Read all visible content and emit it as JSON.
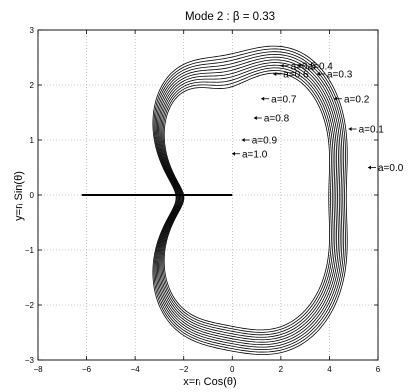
{
  "chart_data": {
    "type": "line",
    "title": "Mode 2 : β = 0.33",
    "xlabel": "x=rᵢ Cos(θ)",
    "ylabel": "y=rᵢ Sin(θ)",
    "xlim": [
      -8,
      6
    ],
    "ylim": [
      -3,
      3
    ],
    "xticks": [
      "−8",
      "−6",
      "−4",
      "−2",
      "0",
      "2",
      "4",
      "6"
    ],
    "yticks": [
      "−3",
      "−2",
      "−1",
      "0",
      "1",
      "2",
      "3"
    ],
    "grid": "dotted",
    "curve_params": {
      "beta": 0.33,
      "mode": 2
    },
    "series": [
      {
        "name": "a=0.0",
        "a": 0.0,
        "label_x": 6.0,
        "label_y": 0.5
      },
      {
        "name": "a=0.1",
        "a": 0.1,
        "label_x": 5.2,
        "label_y": 1.2
      },
      {
        "name": "a=0.2",
        "a": 0.2,
        "label_x": 4.6,
        "label_y": 1.75
      },
      {
        "name": "a=0.3",
        "a": 0.3,
        "label_x": 3.9,
        "label_y": 2.2
      },
      {
        "name": "a=0.4",
        "a": 0.4,
        "label_x": 3.1,
        "label_y": 2.35
      },
      {
        "name": "a=0.5",
        "a": 0.5,
        "label_x": 2.4,
        "label_y": 2.35
      },
      {
        "name": "a=0.6",
        "a": 0.6,
        "label_x": 2.1,
        "label_y": 2.2
      },
      {
        "name": "a=0.7",
        "a": 0.7,
        "label_x": 1.6,
        "label_y": 1.75
      },
      {
        "name": "a=0.8",
        "a": 0.8,
        "label_x": 1.3,
        "label_y": 1.4
      },
      {
        "name": "a=0.9",
        "a": 0.9,
        "label_x": 0.8,
        "label_y": 1.0
      },
      {
        "name": "a=1.0",
        "a": 1.0,
        "label_x": 0.4,
        "label_y": 0.75
      }
    ],
    "annotations": [
      {
        "text": "a=0.4",
        "x": 3.1,
        "y": 2.35
      },
      {
        "text": "a=0.5",
        "x": 2.4,
        "y": 2.35
      },
      {
        "text": "a=0.6",
        "x": 2.1,
        "y": 2.2
      },
      {
        "text": "a=0.3",
        "x": 3.9,
        "y": 2.2
      },
      {
        "text": "a=0.2",
        "x": 4.6,
        "y": 1.75
      },
      {
        "text": "a=0.7",
        "x": 1.6,
        "y": 1.75
      },
      {
        "text": "a=0.8",
        "x": 1.3,
        "y": 1.4
      },
      {
        "text": "a=0.1",
        "x": 5.2,
        "y": 1.2
      },
      {
        "text": "a=0.9",
        "x": 0.8,
        "y": 1.0
      },
      {
        "text": "a=1.0",
        "x": 0.4,
        "y": 0.75
      },
      {
        "text": "a=0.0",
        "x": 6.0,
        "y": 0.5
      }
    ],
    "colors": {
      "line": "#000000",
      "grid": "#9a9a9a",
      "background": "#ffffff"
    }
  }
}
